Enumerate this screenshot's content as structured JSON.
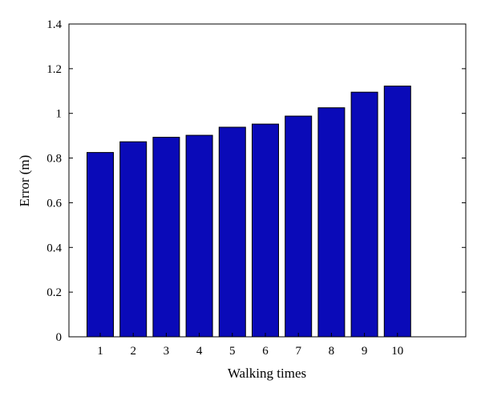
{
  "chart_data": {
    "type": "bar",
    "title": "",
    "xlabel": "Walking times",
    "ylabel": "Error (m)",
    "categories": [
      "1",
      "2",
      "3",
      "4",
      "5",
      "6",
      "7",
      "8",
      "9",
      "10"
    ],
    "values": [
      0.825,
      0.873,
      0.893,
      0.902,
      0.938,
      0.952,
      0.988,
      1.025,
      1.095,
      1.122
    ],
    "ylim": [
      0,
      1.4
    ],
    "yticks": [
      "0",
      "0.2",
      "0.4",
      "0.6",
      "0.8",
      "1",
      "1.2",
      "1.4"
    ],
    "grid": false,
    "legend": "none",
    "colors": {
      "bar_fill": "#0a0ab8",
      "bar_stroke": "#000000",
      "axis": "#000000",
      "background": "#ffffff"
    }
  }
}
